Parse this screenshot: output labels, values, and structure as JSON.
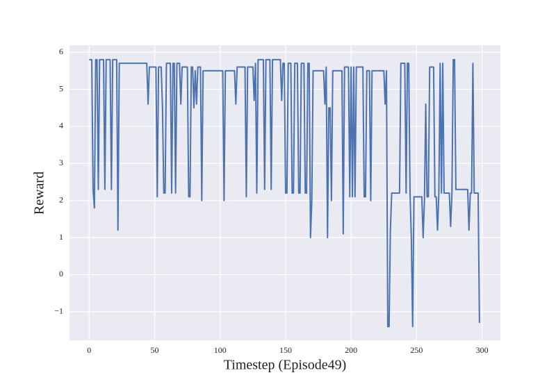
{
  "chart_data": {
    "type": "line",
    "x_label": "Timestep (Episode49)",
    "y_label": "Reward",
    "xlim": [
      -15,
      314
    ],
    "xticks": [
      0,
      50,
      100,
      150,
      200,
      250,
      300
    ],
    "ylim": [
      -1.77,
      6.19
    ],
    "yticks": [
      {
        "value": -1,
        "label": "−1"
      },
      0,
      1,
      2,
      3,
      4,
      5,
      6
    ],
    "grid": true,
    "x": [
      0,
      1,
      2,
      3,
      4,
      5,
      6,
      7,
      8,
      9,
      10,
      11,
      12,
      13,
      14,
      15,
      16,
      17,
      18,
      19,
      20,
      21,
      22,
      23,
      24,
      25,
      26,
      27,
      28,
      29,
      30,
      31,
      32,
      33,
      34,
      35,
      36,
      37,
      38,
      39,
      40,
      41,
      42,
      43,
      44,
      45,
      46,
      47,
      48,
      49,
      50,
      51,
      52,
      53,
      54,
      55,
      56,
      57,
      58,
      59,
      60,
      61,
      62,
      63,
      64,
      65,
      66,
      67,
      68,
      69,
      70,
      71,
      72,
      73,
      74,
      75,
      76,
      77,
      78,
      79,
      80,
      81,
      82,
      83,
      84,
      85,
      86,
      87,
      88,
      89,
      90,
      91,
      92,
      93,
      94,
      95,
      96,
      97,
      98,
      99,
      100,
      101,
      102,
      103,
      104,
      105,
      106,
      107,
      108,
      109,
      110,
      111,
      112,
      113,
      114,
      115,
      116,
      117,
      118,
      119,
      120,
      121,
      122,
      123,
      124,
      125,
      126,
      127,
      128,
      129,
      130,
      131,
      132,
      133,
      134,
      135,
      136,
      137,
      138,
      139,
      140,
      141,
      142,
      143,
      144,
      145,
      146,
      147,
      148,
      149,
      150,
      151,
      152,
      153,
      154,
      155,
      156,
      157,
      158,
      159,
      160,
      161,
      162,
      163,
      164,
      165,
      166,
      167,
      168,
      169,
      170,
      171,
      172,
      173,
      174,
      175,
      176,
      177,
      178,
      179,
      180,
      181,
      182,
      183,
      184,
      185,
      186,
      187,
      188,
      189,
      190,
      191,
      192,
      193,
      194,
      195,
      196,
      197,
      198,
      199,
      200,
      201,
      202,
      203,
      204,
      205,
      206,
      207,
      208,
      209,
      210,
      211,
      212,
      213,
      214,
      215,
      216,
      217,
      218,
      219,
      220,
      221,
      222,
      223,
      224,
      225,
      226,
      227,
      228,
      229,
      230,
      231,
      232,
      233,
      234,
      235,
      236,
      237,
      238,
      239,
      240,
      241,
      242,
      243,
      244,
      245,
      246,
      247,
      248,
      249,
      250,
      251,
      252,
      253,
      254,
      255,
      256,
      257,
      258,
      259,
      260,
      261,
      262,
      263,
      264,
      265,
      266,
      267,
      268,
      269,
      270,
      271,
      272,
      273,
      274,
      275,
      276,
      277,
      278,
      279,
      280,
      281,
      282,
      283,
      284,
      285,
      286,
      287,
      288,
      289,
      290,
      291,
      292,
      293,
      294,
      295,
      296,
      297,
      298
    ],
    "series": [
      {
        "color": "#4c72b0",
        "values": [
          5.8,
          5.8,
          5.8,
          2.3,
          1.8,
          5.8,
          5.8,
          2.3,
          5.8,
          5.8,
          5.8,
          5.8,
          2.3,
          5.8,
          5.8,
          5.8,
          5.8,
          2.3,
          5.8,
          5.8,
          5.8,
          5.8,
          1.2,
          5.7,
          5.7,
          5.7,
          5.7,
          5.7,
          5.7,
          5.7,
          5.7,
          5.7,
          5.7,
          5.7,
          5.7,
          5.7,
          5.7,
          5.7,
          5.7,
          5.7,
          5.7,
          5.7,
          5.7,
          5.7,
          5.7,
          4.6,
          5.6,
          5.6,
          5.6,
          5.6,
          5.6,
          5.6,
          2.1,
          5.6,
          5.6,
          5.6,
          4.5,
          2.2,
          2.2,
          5.7,
          5.7,
          5.7,
          5.7,
          2.2,
          5.7,
          5.7,
          2.2,
          5.7,
          5.7,
          5.7,
          4.6,
          5.6,
          5.6,
          5.6,
          5.6,
          5.6,
          2.1,
          2.1,
          5.6,
          5.6,
          4.5,
          5.5,
          4.6,
          5.6,
          5.6,
          5.6,
          2.0,
          5.5,
          5.5,
          5.5,
          5.5,
          5.5,
          5.5,
          5.5,
          5.5,
          5.5,
          5.5,
          5.5,
          5.5,
          5.5,
          5.5,
          5.5,
          5.5,
          2.0,
          5.5,
          5.5,
          5.5,
          5.5,
          5.5,
          5.5,
          5.5,
          5.5,
          4.6,
          5.6,
          5.6,
          5.6,
          5.6,
          5.6,
          5.6,
          5.6,
          2.1,
          5.6,
          5.6,
          5.6,
          5.6,
          5.6,
          4.7,
          5.7,
          2.2,
          5.8,
          5.8,
          5.8,
          5.8,
          5.8,
          2.3,
          5.8,
          5.8,
          5.8,
          5.8,
          2.3,
          5.8,
          5.8,
          5.8,
          5.8,
          5.8,
          5.8,
          5.8,
          4.7,
          5.7,
          5.7,
          2.2,
          2.2,
          5.7,
          5.7,
          5.7,
          2.2,
          2.2,
          5.7,
          5.7,
          5.7,
          2.2,
          2.2,
          5.7,
          5.7,
          5.7,
          2.2,
          2.2,
          5.7,
          5.7,
          1.0,
          2.0,
          5.5,
          5.5,
          5.5,
          5.5,
          5.5,
          5.5,
          5.5,
          5.5,
          5.5,
          4.6,
          5.6,
          1.0,
          4.5,
          4.5,
          2.0,
          5.5,
          5.5,
          5.5,
          5.5,
          5.5,
          5.5,
          5.5,
          5.5,
          1.1,
          5.6,
          5.6,
          5.6,
          5.6,
          2.1,
          5.6,
          2.1,
          5.6,
          2.1,
          5.6,
          5.6,
          5.6,
          5.6,
          5.6,
          5.6,
          2.1,
          2.1,
          5.5,
          5.5,
          5.5,
          2.0,
          5.5,
          5.5,
          5.5,
          5.5,
          5.5,
          5.5,
          5.5,
          5.5,
          5.5,
          5.5,
          4.6,
          5.5,
          -1.4,
          -1.4,
          1.2,
          2.2,
          2.2,
          2.2,
          2.2,
          2.2,
          2.2,
          2.2,
          5.7,
          5.7,
          5.7,
          5.7,
          2.2,
          5.7,
          5.7,
          2.2,
          1.0,
          -1.4,
          2.1,
          2.1,
          2.1,
          2.1,
          2.1,
          2.1,
          2.1,
          1.0,
          2.0,
          4.6,
          2.1,
          2.1,
          5.6,
          5.6,
          5.6,
          5.6,
          2.1,
          2.1,
          1.2,
          2.2,
          5.7,
          2.2,
          5.7,
          2.2,
          2.2,
          2.2,
          2.2,
          2.2,
          1.3,
          2.2,
          5.8,
          5.8,
          2.3,
          2.3,
          2.3,
          2.3,
          2.3,
          2.3,
          2.3,
          2.3,
          2.3,
          2.3,
          1.2,
          2.2,
          2.2,
          5.7,
          2.2,
          2.2,
          2.2,
          2.2,
          -1.3
        ]
      }
    ]
  }
}
